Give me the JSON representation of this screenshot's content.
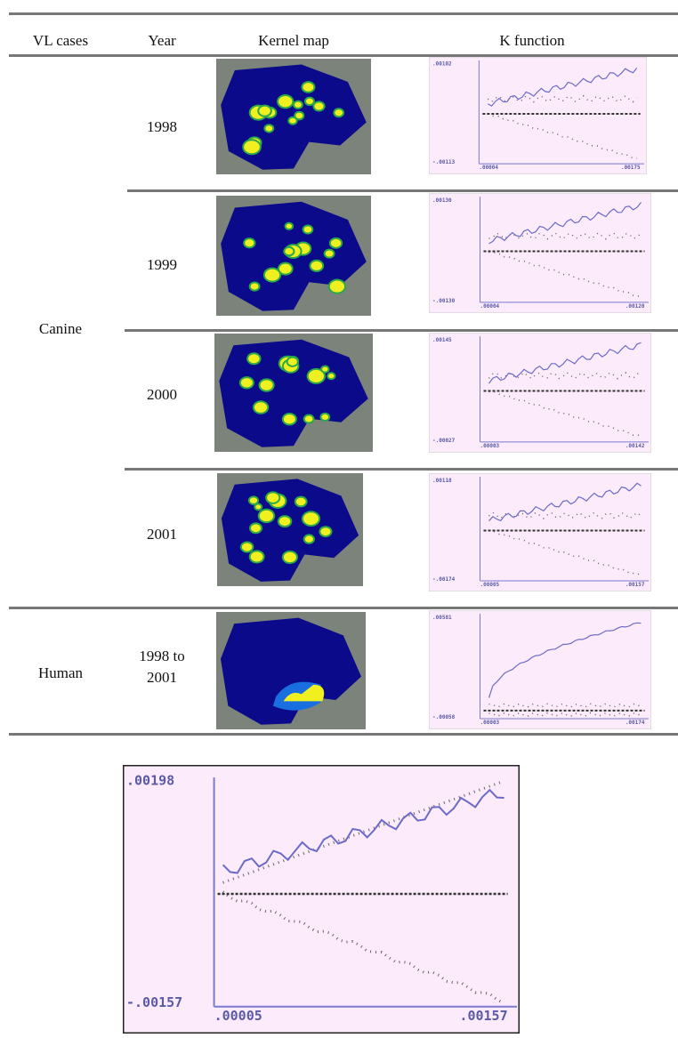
{
  "table": {
    "headers": [
      "VL cases",
      "Year",
      "Kernel map",
      "K function"
    ],
    "groups": [
      {
        "label": "Canine",
        "rows": [
          {
            "year": "1998",
            "k_function": {
              "y_top": ".00102",
              "y_bottom": "-.00113",
              "x_left": ".00004",
              "x_right": ".00175"
            }
          },
          {
            "year": "1999",
            "k_function": {
              "y_top": ".00130",
              "y_bottom": "-.00130",
              "x_left": ".00004",
              "x_right": ".00120"
            }
          },
          {
            "year": "2000",
            "k_function": {
              "y_top": ".00145",
              "y_bottom": "-.00027",
              "x_left": ".00003",
              "x_right": ".00142"
            }
          },
          {
            "year": "2001",
            "k_function": {
              "y_top": ".00118",
              "y_bottom": "-.00174",
              "x_left": ".00005",
              "x_right": ".00157"
            }
          }
        ]
      },
      {
        "label": "Human",
        "rows": [
          {
            "year": "1998 to 2001",
            "k_function": {
              "y_top": ".00581",
              "y_bottom": "-.00058",
              "x_left": ".00003",
              "x_right": ".00174"
            }
          }
        ]
      }
    ]
  },
  "figure": {
    "y_top": ".00198",
    "y_bottom": "-.00157",
    "x_left": ".00005",
    "x_right": ".00157"
  }
}
